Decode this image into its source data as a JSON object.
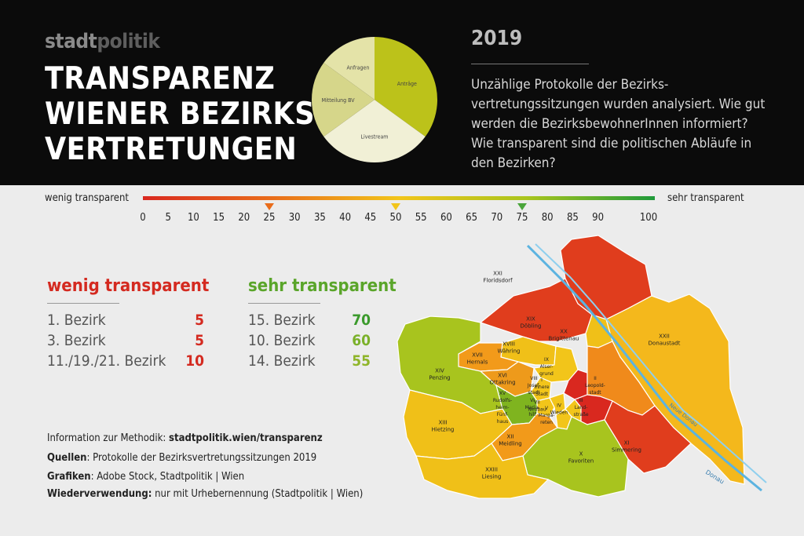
{
  "header": {
    "brand_a": "stadt",
    "brand_b": "politik",
    "title_lines": [
      "TRANSPARENZ",
      "WIENER BEZIRKS-",
      "VERTRETUNGEN"
    ],
    "year": "2019",
    "intro": "Unzählige Protokolle der Bezirks- vertretungssitzungen wurden analysiert. Wie gut werden die BezirksbewohnerInnen informiert? Wie transparent sind die politischen Abläufe in den Bezirken?"
  },
  "scale": {
    "left_label": "wenig transparent",
    "right_label": "sehr transparent",
    "ticks": [
      "0",
      "5",
      "10",
      "15",
      "20",
      "25",
      "30",
      "35",
      "40",
      "45",
      "50",
      "55",
      "60",
      "65",
      "70",
      "75",
      "80",
      "85",
      "90",
      "100"
    ],
    "markers": [
      25,
      50,
      75
    ]
  },
  "ranking": {
    "low_title": "wenig transparent",
    "high_title": "sehr transparent",
    "low": [
      {
        "label": "1. Bezirk",
        "value": "5"
      },
      {
        "label": "3. Bezirk",
        "value": "5"
      },
      {
        "label": "11./19./21. Bezirk",
        "value": "10"
      }
    ],
    "high": [
      {
        "label": "15. Bezirk",
        "value": "70"
      },
      {
        "label": "10. Bezirk",
        "value": "60"
      },
      {
        "label": "14. Bezirk",
        "value": "55"
      }
    ]
  },
  "info": {
    "method_label": "Information zur Methodik:",
    "method_value": "stadtpolitik.wien/transparenz",
    "sources_label": "Quellen",
    "sources_value": ": Protokolle der Bezirksvertretungssitzungen 2019",
    "graphics_label": "Grafiken",
    "graphics_value": ": Adobe Stock, Stadtpolitik | Wien",
    "reuse_label": "Wiederverwendung:",
    "reuse_value": " nur mit Urhebernennung (Stadtpolitik | Wien)"
  },
  "chart_data": [
    {
      "type": "pie",
      "categories": [
        "Anträge",
        "Livestream",
        "Mitteilung BV",
        "Anfragen"
      ],
      "values": [
        35,
        30,
        20,
        15
      ],
      "colors": [
        "#bcc21a",
        "#f1f0d6",
        "#d6d68a",
        "#e4e3a8"
      ]
    }
  ],
  "map": {
    "river_labels": [
      "Neue Donau",
      "Donau"
    ],
    "districts": [
      {
        "label": "XXI Floridsdorf",
        "color": "#e03d1d"
      },
      {
        "label": "XXII Donaustadt",
        "color": "#f4b81c"
      },
      {
        "label": "XIX Döbling",
        "color": "#e03d1d"
      },
      {
        "label": "XX Brigittenau",
        "color": "#f0c018"
      },
      {
        "label": "XVIII Währing",
        "color": "#f0c018"
      },
      {
        "label": "XVII Hernals",
        "color": "#f29a1a"
      },
      {
        "label": "XIV Penzing",
        "color": "#a8c41e"
      },
      {
        "label": "XVI Ottakring",
        "color": "#ee9a1b"
      },
      {
        "label": "IX Alser- grund",
        "color": "#f2c51a"
      },
      {
        "label": "I Innere Stadt",
        "color": "#d9281f"
      },
      {
        "label": "VIII Josef- stadt",
        "color": "#f2c51a"
      },
      {
        "label": "VII Neubau",
        "color": "#f2c51a"
      },
      {
        "label": "II Leopold- stadt",
        "color": "#f08a1b"
      },
      {
        "label": "XV Rudolfs- heim- Fünf- haus",
        "color": "#7fb41f"
      },
      {
        "label": "VI Maria- hilf",
        "color": "#f2c51a"
      },
      {
        "label": "V Marga- reten",
        "color": "#f2c51a"
      },
      {
        "label": "IV Wieden",
        "color": "#f2c51a"
      },
      {
        "label": "III Land- straße",
        "color": "#d9281f"
      },
      {
        "label": "XIII Hietzing",
        "color": "#f0c018"
      },
      {
        "label": "XII Meidling",
        "color": "#f29a1a"
      },
      {
        "label": "XI Simmering",
        "color": "#e03d1d"
      },
      {
        "label": "X Favoriten",
        "color": "#a8c41e"
      },
      {
        "label": "XXIII Liesing",
        "color": "#f0c018"
      }
    ]
  }
}
